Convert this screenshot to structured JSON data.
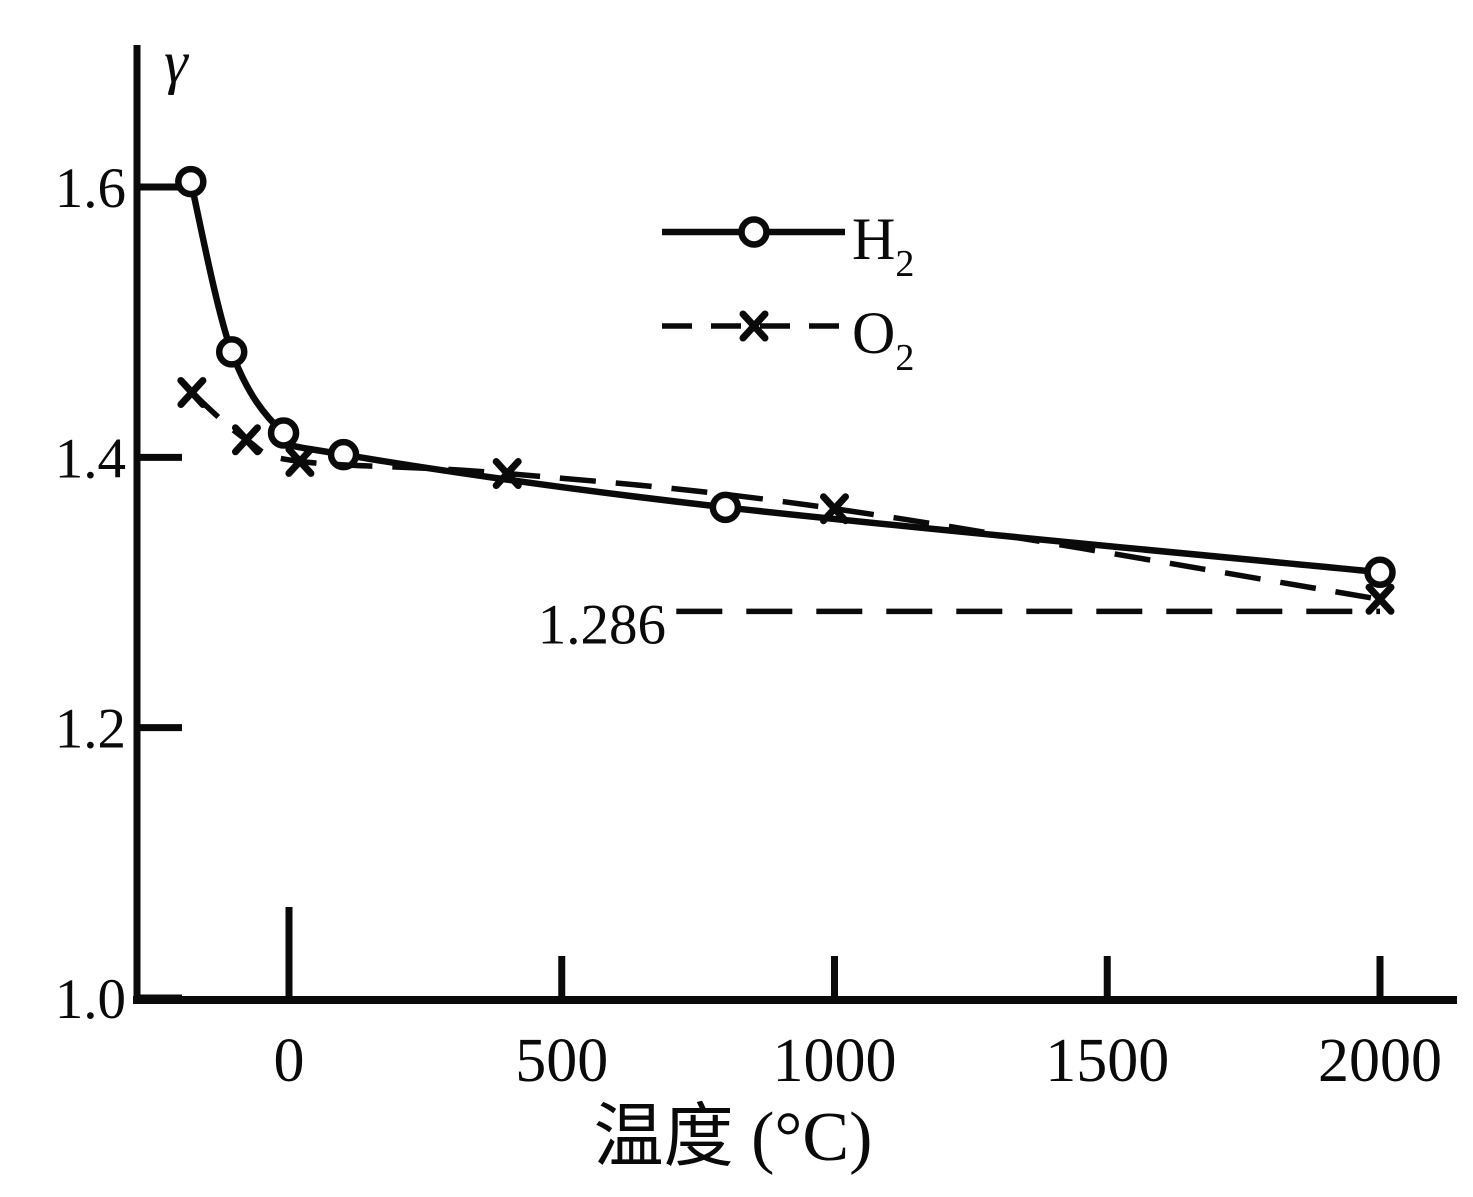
{
  "figure": {
    "background": "#ffffff",
    "ink_color": "#0a0a0a"
  },
  "chart_data": {
    "type": "line",
    "title": "",
    "xlabel": "温度 (°C)",
    "ylabel": "γ",
    "xlim": [
      -280,
      2140
    ],
    "ylim": [
      1.0,
      1.6
    ],
    "x_ticks": [
      0,
      500,
      1000,
      1500,
      2000
    ],
    "y_ticks": [
      1.0,
      1.2,
      1.4,
      1.6
    ],
    "grid": false,
    "legend_position": "upper-center",
    "series": [
      {
        "name": "H2",
        "label": "H",
        "label_sub": "2",
        "marker": "circle",
        "line_style": "solid",
        "points": [
          [
            -180,
            1.604
          ],
          [
            -105,
            1.478
          ],
          [
            -10,
            1.418
          ],
          [
            100,
            1.402
          ],
          [
            800,
            1.363
          ],
          [
            2000,
            1.315
          ]
        ]
      },
      {
        "name": "O2",
        "label": "O",
        "label_sub": "2",
        "marker": "x",
        "line_style": "dashed",
        "points": [
          [
            -178,
            1.448
          ],
          [
            -78,
            1.413
          ],
          [
            20,
            1.397
          ],
          [
            400,
            1.388
          ],
          [
            1000,
            1.362
          ],
          [
            2000,
            1.295
          ]
        ]
      }
    ],
    "asymptote": {
      "value": 1.286,
      "label": "1.286",
      "style": "dashed",
      "x_start": 710,
      "x_end": 2000
    }
  }
}
